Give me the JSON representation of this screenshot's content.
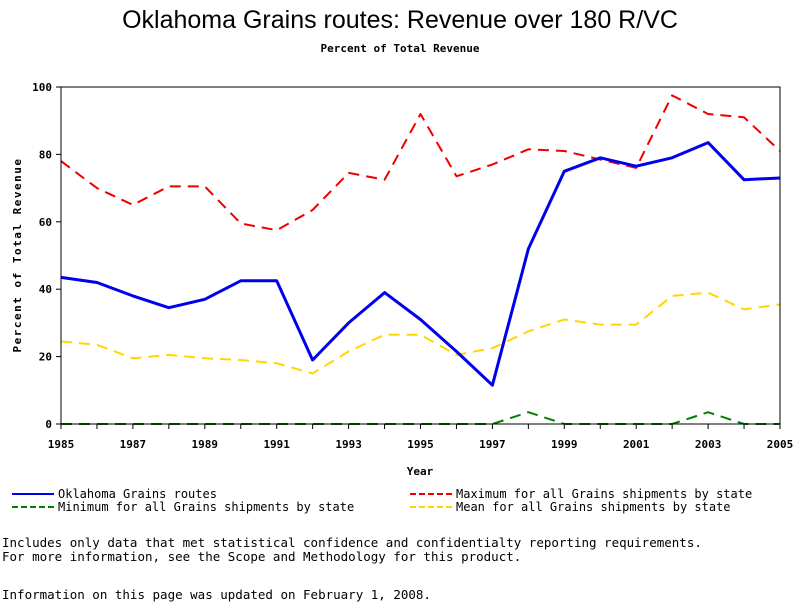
{
  "chart_data": {
    "type": "line",
    "title": "Oklahoma Grains routes: Revenue over 180 R/VC",
    "subtitle": "Percent of Total Revenue",
    "xlabel": "Year",
    "ylabel": "Percent of Total Revenue",
    "xlim": [
      1985,
      2005
    ],
    "ylim": [
      0,
      100
    ],
    "xticks": [
      "1985",
      "1987",
      "1989",
      "1991",
      "1993",
      "1995",
      "1997",
      "1999",
      "2001",
      "2003",
      "2005"
    ],
    "yticks": [
      "0",
      "20",
      "40",
      "60",
      "80",
      "100"
    ],
    "x": [
      1985,
      1986,
      1987,
      1988,
      1989,
      1990,
      1991,
      1992,
      1993,
      1994,
      1995,
      1996,
      1997,
      1998,
      1999,
      2000,
      2001,
      2002,
      2003,
      2004,
      2005
    ],
    "series": [
      {
        "name": "Oklahoma Grains routes",
        "color": "#0000ee",
        "style": "solid",
        "values": [
          43.5,
          42,
          38,
          34.5,
          37,
          42.5,
          42.5,
          19,
          30,
          39,
          31,
          21.5,
          11.5,
          52,
          75,
          79,
          76.5,
          79,
          83.5,
          72.5,
          73
        ]
      },
      {
        "name": "Maximum for all Grains shipments by state",
        "color": "#ee0000",
        "style": "dashed",
        "values": [
          78,
          70,
          65,
          70.5,
          70.5,
          59.5,
          57.5,
          63.5,
          74.5,
          72.5,
          92,
          73.5,
          77,
          81.5,
          81,
          78.5,
          76,
          97.5,
          92,
          91,
          81
        ]
      },
      {
        "name": "Minimum for all Grains shipments by state",
        "color": "#008000",
        "style": "dashed",
        "values": [
          0,
          0,
          0,
          0,
          0,
          0,
          0,
          0,
          0,
          0,
          0,
          0,
          0,
          3.5,
          0,
          0,
          0,
          0,
          3.5,
          0,
          0
        ]
      },
      {
        "name": "Mean for all Grains shipments by state",
        "color": "#ffd700",
        "style": "dashed",
        "values": [
          24.5,
          23.5,
          19.5,
          20.5,
          19.5,
          19,
          18,
          15,
          21.5,
          26.5,
          26.5,
          20.5,
          22.5,
          27.5,
          31,
          29.5,
          29.5,
          38,
          39,
          34,
          35.5
        ]
      }
    ]
  },
  "legend": {
    "entry1": "Oklahoma Grains routes",
    "entry2": "Maximum for all Grains shipments by state",
    "entry3": "Minimum for all Grains shipments by state",
    "entry4": "Mean for all Grains shipments by state"
  },
  "notes": {
    "line1": "Includes only data that met statistical confidence and confidentialty reporting requirements.",
    "line2": "For more information, see the Scope and Methodology for this product.",
    "line3": "Information on this page was updated on February 1, 2008."
  },
  "colors": {
    "blue": "#0000ee",
    "red": "#ee0000",
    "green": "#008000",
    "yellow": "#ffd700"
  }
}
